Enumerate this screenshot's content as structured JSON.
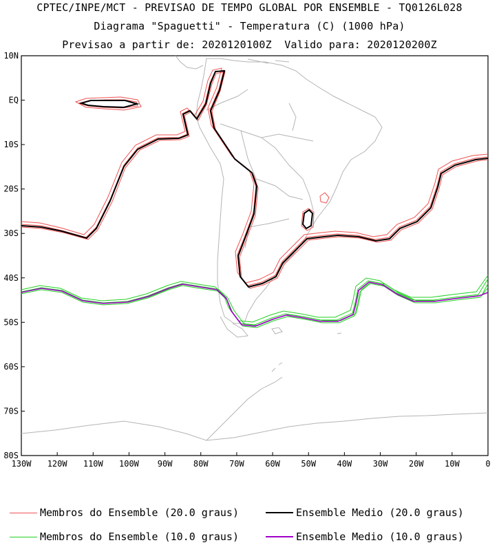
{
  "header": {
    "line1": "CPTEC/INPE/MCT - PREVISAO DE TEMPO GLOBAL POR ENSEMBLE - TQ0126L028",
    "line2": "Diagrama \"Spaguetti\" - Temperatura (C) (1000 hPa)",
    "line3": "Previsao a partir de: 2020120100Z  Valido para: 2020120200Z"
  },
  "map": {
    "region": "South America / South Atlantic / South-East Pacific",
    "lon_labels": [
      "130W",
      "120W",
      "110W",
      "100W",
      "90W",
      "80W",
      "70W",
      "60W",
      "50W",
      "40W",
      "30W",
      "20W",
      "10W",
      "0"
    ],
    "lat_labels": [
      "10N",
      "EQ",
      "10S",
      "20S",
      "30S",
      "40S",
      "50S",
      "60S",
      "70S",
      "80S"
    ],
    "extent": {
      "lon": [
        -130,
        0
      ],
      "lat": [
        -80,
        10
      ]
    },
    "colors": {
      "coastline": "#b4b4b4",
      "member_20": "#f05050",
      "mean_20": "#000000",
      "member_10": "#22d022",
      "mean_10": "#a000c8"
    }
  },
  "legend": {
    "item1": "Membros do Ensemble (20.0 graus)",
    "item2": "Ensemble Medio (20.0 graus)",
    "item3": "Membros do Ensemble (10.0 graus)",
    "item4": "Ensemble Medio (10.0 graus)"
  }
}
